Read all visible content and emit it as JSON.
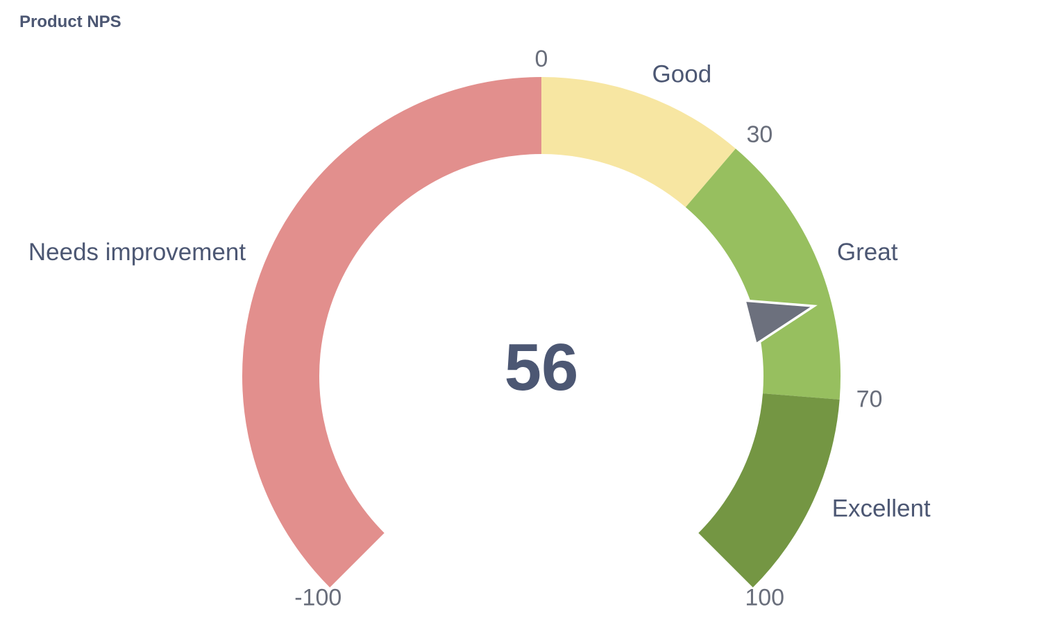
{
  "card": {
    "title": "Product NPS"
  },
  "chart_data": {
    "type": "gauge",
    "title": "Product NPS",
    "min": -100,
    "max": 100,
    "value": 56,
    "value_label": "56",
    "segments": [
      {
        "label": "Needs improvement",
        "from": -100,
        "to": 0,
        "color": "#e28f8d"
      },
      {
        "label": "Good",
        "from": 0,
        "to": 30,
        "color": "#f7e6a2"
      },
      {
        "label": "Great",
        "from": 30,
        "to": 70,
        "color": "#97bf5f"
      },
      {
        "label": "Excellent",
        "from": 70,
        "to": 100,
        "color": "#749643"
      }
    ],
    "ticks": [
      {
        "value": -100,
        "label": "-100"
      },
      {
        "value": 0,
        "label": "0"
      },
      {
        "value": 30,
        "label": "30"
      },
      {
        "value": 70,
        "label": "70"
      },
      {
        "value": 100,
        "label": "100"
      }
    ],
    "needle_color": "#6c707d"
  }
}
